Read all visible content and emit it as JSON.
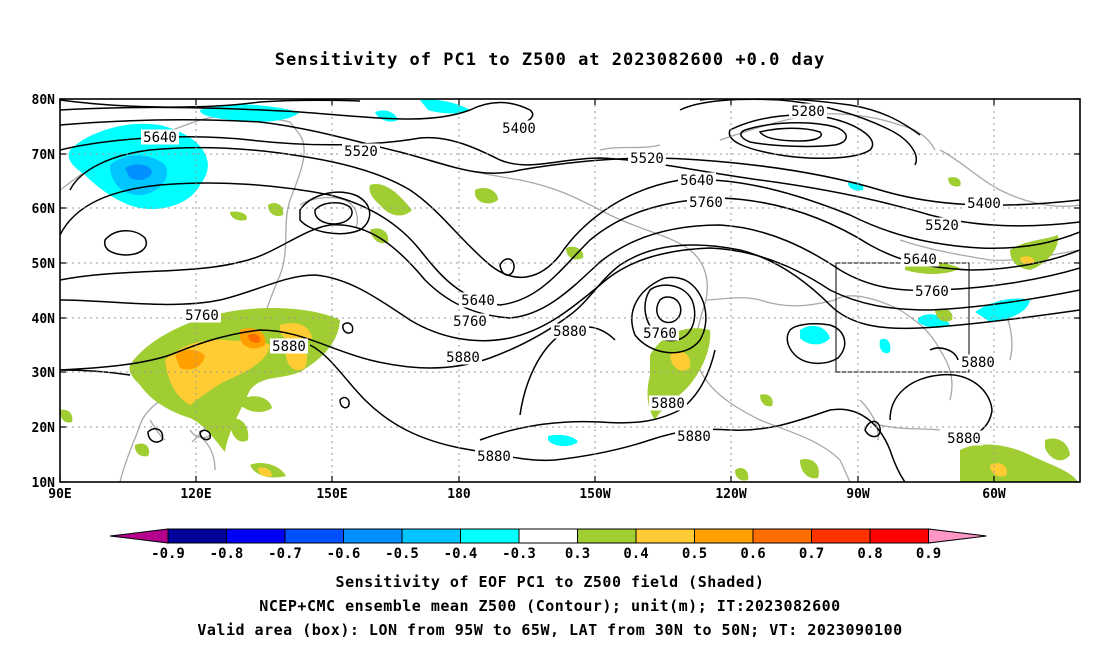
{
  "title": "Sensitivity of PC1 to Z500 at 2023082600 +0.0 day",
  "map": {
    "lat_labels": [
      "80N",
      "70N",
      "60N",
      "50N",
      "40N",
      "30N",
      "20N",
      "10N"
    ],
    "lon_labels": [
      "90E",
      "120E",
      "150E",
      "180",
      "150W",
      "120W",
      "90W",
      "60W"
    ],
    "contour_labels": [
      {
        "text": "5280"
      },
      {
        "text": "5400"
      },
      {
        "text": "5400"
      },
      {
        "text": "5520"
      },
      {
        "text": "5520"
      },
      {
        "text": "5520"
      },
      {
        "text": "5640"
      },
      {
        "text": "5640"
      },
      {
        "text": "5640"
      },
      {
        "text": "5640"
      },
      {
        "text": "5760"
      },
      {
        "text": "5760"
      },
      {
        "text": "5760"
      },
      {
        "text": "5760"
      },
      {
        "text": "5760"
      },
      {
        "text": "5880"
      },
      {
        "text": "5880"
      },
      {
        "text": "5880"
      },
      {
        "text": "5880"
      },
      {
        "text": "5880"
      },
      {
        "text": "5880"
      },
      {
        "text": "5880"
      },
      {
        "text": "5880"
      }
    ],
    "valid_box": {
      "lon_from": "95W",
      "lon_to": "65W",
      "lat_from": "30N",
      "lat_to": "50N"
    }
  },
  "colorbar": {
    "labels": [
      "-0.9",
      "-0.8",
      "-0.7",
      "-0.6",
      "-0.5",
      "-0.4",
      "-0.3",
      "0.3",
      "0.4",
      "0.5",
      "0.6",
      "0.7",
      "0.8",
      "0.9"
    ],
    "colors": [
      "#00009a",
      "#0000f5",
      "#0050ff",
      "#0090ff",
      "#00c5ff",
      "#00ffff",
      "#ffffff",
      "#a0cd32",
      "#ffcc33",
      "#ffa000",
      "#ff6e00",
      "#ff3200",
      "#ff0000"
    ],
    "low_arrow_color": "#b4008c",
    "high_arrow_color": "#ff96c8"
  },
  "captions": [
    "Sensitivity of EOF PC1 to Z500 field (Shaded)",
    "NCEP+CMC ensemble mean Z500 (Contour); unit(m); IT:2023082600",
    "Valid area (box): LON from 95W to 65W, LAT from 30N to 50N; VT: 2023090100"
  ]
}
